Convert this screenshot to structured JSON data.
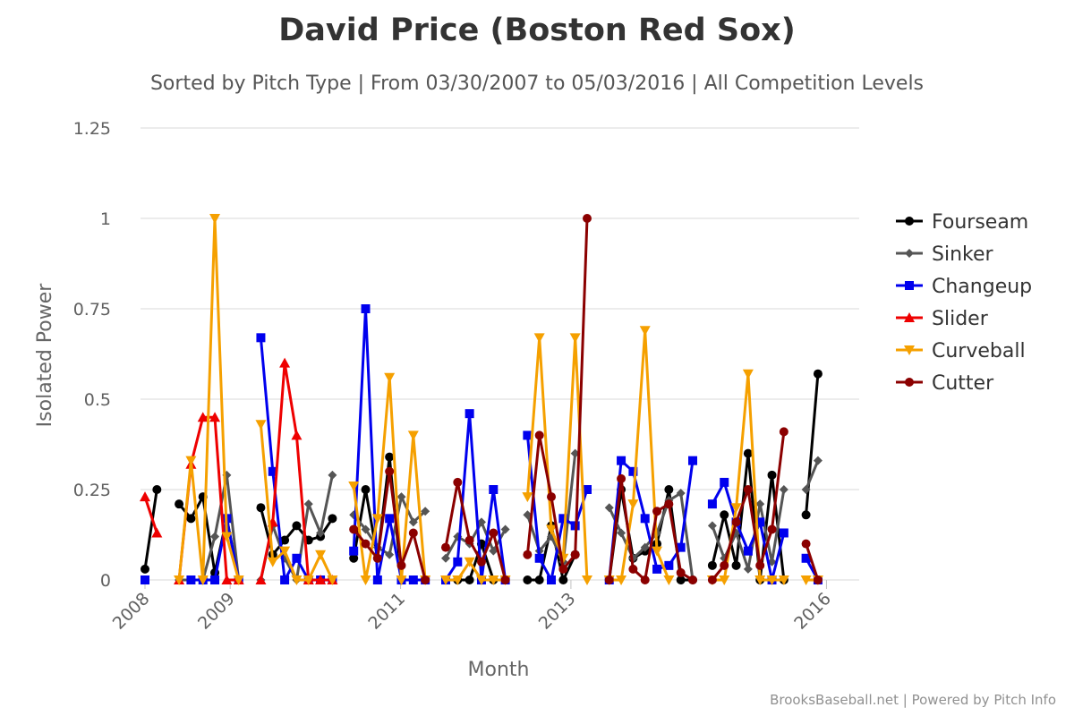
{
  "chart_data": {
    "type": "line",
    "title": "David Price (Boston Red Sox)",
    "subtitle": "Sorted by Pitch Type | From 03/30/2007 to 05/03/2016 | All Competition Levels",
    "xlabel": "Month",
    "ylabel": "Isolated Power",
    "ylim": [
      0,
      1.25
    ],
    "yticks": [
      0,
      0.25,
      0.5,
      0.75,
      1,
      1.25
    ],
    "ytick_labels": [
      "0",
      "0.25",
      "0.5",
      "0.75",
      "1",
      "1.25"
    ],
    "xlim": [
      2008,
      2016.3
    ],
    "xticks": [
      2008,
      2009,
      2011,
      2013,
      2016
    ],
    "xtick_labels": [
      "2008",
      "2009",
      "2011",
      "2013",
      "2016"
    ],
    "grid": true,
    "legend_position": "right",
    "series": [
      {
        "name": "Fourseam",
        "color": "#000000",
        "marker": "circle",
        "segments": [
          [
            [
              2008.0,
              0.03
            ],
            [
              2008.14,
              0.25
            ]
          ],
          [
            [
              2008.4,
              0.21
            ],
            [
              2008.54,
              0.17
            ],
            [
              2008.68,
              0.23
            ],
            [
              2008.82,
              0.02
            ],
            [
              2008.96,
              0.17
            ],
            [
              2009.1,
              0.0
            ]
          ],
          [
            [
              2009.36,
              0.2
            ],
            [
              2009.5,
              0.07
            ],
            [
              2009.64,
              0.11
            ],
            [
              2009.78,
              0.15
            ],
            [
              2009.92,
              0.11
            ],
            [
              2010.06,
              0.12
            ],
            [
              2010.2,
              0.17
            ]
          ],
          [
            [
              2010.45,
              0.06
            ],
            [
              2010.59,
              0.25
            ],
            [
              2010.73,
              0.06
            ],
            [
              2010.87,
              0.34
            ],
            [
              2011.01,
              0.0
            ],
            [
              2011.15,
              0.0
            ],
            [
              2011.29,
              0.0
            ]
          ],
          [
            [
              2011.53,
              0.0
            ],
            [
              2011.67,
              0.0
            ],
            [
              2011.81,
              0.0
            ],
            [
              2011.95,
              0.1
            ],
            [
              2012.09,
              0.0
            ],
            [
              2012.23,
              0.0
            ]
          ],
          [
            [
              2012.49,
              0.0
            ],
            [
              2012.63,
              0.0
            ],
            [
              2012.77,
              0.15
            ],
            [
              2012.91,
              0.0
            ],
            [
              2013.05,
              0.07
            ]
          ],
          [
            [
              2013.45,
              0.0
            ],
            [
              2013.59,
              0.25
            ],
            [
              2013.73,
              0.06
            ],
            [
              2013.87,
              0.08
            ],
            [
              2014.01,
              0.1
            ],
            [
              2014.15,
              0.25
            ],
            [
              2014.29,
              0.0
            ],
            [
              2014.43,
              0.0
            ]
          ],
          [
            [
              2014.66,
              0.04
            ],
            [
              2014.8,
              0.18
            ],
            [
              2014.94,
              0.04
            ],
            [
              2015.08,
              0.35
            ],
            [
              2015.22,
              0.0
            ],
            [
              2015.36,
              0.29
            ],
            [
              2015.5,
              0.0
            ]
          ],
          [
            [
              2015.76,
              0.18
            ],
            [
              2015.9,
              0.57
            ]
          ]
        ]
      },
      {
        "name": "Sinker",
        "color": "#555555",
        "marker": "diamond",
        "segments": [
          [
            [
              2008.4,
              0.0
            ],
            [
              2008.54,
              0.0
            ],
            [
              2008.68,
              0.0
            ],
            [
              2008.82,
              0.12
            ],
            [
              2008.96,
              0.29
            ],
            [
              2009.1,
              0.0
            ]
          ],
          [
            [
              2009.36,
              0.0
            ],
            [
              2009.5,
              0.15
            ],
            [
              2009.64,
              0.06
            ],
            [
              2009.78,
              0.0
            ],
            [
              2009.92,
              0.21
            ],
            [
              2010.06,
              0.13
            ],
            [
              2010.2,
              0.29
            ]
          ],
          [
            [
              2010.45,
              0.18
            ],
            [
              2010.59,
              0.14
            ],
            [
              2010.73,
              0.09
            ],
            [
              2010.87,
              0.07
            ],
            [
              2011.01,
              0.23
            ],
            [
              2011.15,
              0.16
            ],
            [
              2011.29,
              0.19
            ]
          ],
          [
            [
              2011.53,
              0.06
            ],
            [
              2011.67,
              0.12
            ],
            [
              2011.81,
              0.1
            ],
            [
              2011.95,
              0.16
            ],
            [
              2012.09,
              0.08
            ],
            [
              2012.23,
              0.14
            ]
          ],
          [
            [
              2012.49,
              0.18
            ],
            [
              2012.63,
              0.08
            ],
            [
              2012.77,
              0.12
            ],
            [
              2012.91,
              0.05
            ],
            [
              2013.05,
              0.35
            ]
          ],
          [
            [
              2013.45,
              0.2
            ],
            [
              2013.59,
              0.13
            ],
            [
              2013.73,
              0.06
            ],
            [
              2013.87,
              0.09
            ],
            [
              2014.01,
              0.13
            ],
            [
              2014.15,
              0.22
            ],
            [
              2014.29,
              0.24
            ],
            [
              2014.43,
              0.0
            ]
          ],
          [
            [
              2014.66,
              0.15
            ],
            [
              2014.8,
              0.06
            ],
            [
              2014.94,
              0.13
            ],
            [
              2015.08,
              0.03
            ],
            [
              2015.22,
              0.21
            ],
            [
              2015.36,
              0.05
            ],
            [
              2015.5,
              0.25
            ]
          ],
          [
            [
              2015.76,
              0.25
            ],
            [
              2015.9,
              0.33
            ]
          ]
        ]
      },
      {
        "name": "Changeup",
        "color": "#0000ee",
        "marker": "square",
        "segments": [
          [
            [
              2008.0,
              0.0
            ]
          ],
          [
            [
              2008.54,
              0.0
            ],
            [
              2008.68,
              0.0
            ],
            [
              2008.82,
              0.0
            ],
            [
              2008.96,
              0.17
            ],
            [
              2009.1,
              0.0
            ]
          ],
          [
            [
              2009.36,
              0.67
            ],
            [
              2009.5,
              0.3
            ],
            [
              2009.64,
              0.0
            ],
            [
              2009.78,
              0.06
            ],
            [
              2009.92,
              0.0
            ],
            [
              2010.06,
              0.0
            ],
            [
              2010.2,
              0.0
            ]
          ],
          [
            [
              2010.45,
              0.08
            ],
            [
              2010.59,
              0.75
            ],
            [
              2010.73,
              0.0
            ],
            [
              2010.87,
              0.17
            ],
            [
              2011.01,
              0.0
            ],
            [
              2011.15,
              0.0
            ],
            [
              2011.29,
              0.0
            ]
          ],
          [
            [
              2011.53,
              0.0
            ],
            [
              2011.67,
              0.05
            ],
            [
              2011.81,
              0.46
            ],
            [
              2011.95,
              0.0
            ],
            [
              2012.09,
              0.25
            ],
            [
              2012.23,
              0.0
            ]
          ],
          [
            [
              2012.49,
              0.4
            ],
            [
              2012.63,
              0.06
            ],
            [
              2012.77,
              0.0
            ],
            [
              2012.91,
              0.17
            ],
            [
              2013.05,
              0.15
            ],
            [
              2013.19,
              0.25
            ]
          ],
          [
            [
              2013.45,
              0.0
            ],
            [
              2013.59,
              0.33
            ],
            [
              2013.73,
              0.3
            ],
            [
              2013.87,
              0.17
            ],
            [
              2014.01,
              0.03
            ],
            [
              2014.15,
              0.04
            ],
            [
              2014.29,
              0.09
            ],
            [
              2014.43,
              0.33
            ]
          ],
          [
            [
              2014.66,
              0.21
            ],
            [
              2014.8,
              0.27
            ],
            [
              2014.94,
              0.16
            ],
            [
              2015.08,
              0.08
            ],
            [
              2015.22,
              0.16
            ],
            [
              2015.36,
              0.0
            ],
            [
              2015.5,
              0.13
            ]
          ],
          [
            [
              2015.76,
              0.06
            ],
            [
              2015.9,
              0.0
            ]
          ]
        ]
      },
      {
        "name": "Slider",
        "color": "#ee0000",
        "marker": "triangle",
        "segments": [
          [
            [
              2008.0,
              0.23
            ],
            [
              2008.14,
              0.13
            ]
          ],
          [
            [
              2008.4,
              0.0
            ],
            [
              2008.54,
              0.32
            ],
            [
              2008.68,
              0.45
            ],
            [
              2008.82,
              0.45
            ],
            [
              2008.96,
              0.0
            ],
            [
              2009.1,
              0.0
            ]
          ],
          [
            [
              2009.36,
              0.0
            ],
            [
              2009.5,
              0.16
            ],
            [
              2009.64,
              0.6
            ],
            [
              2009.78,
              0.4
            ],
            [
              2009.92,
              0.0
            ],
            [
              2010.06,
              0.0
            ],
            [
              2010.2,
              0.0
            ]
          ]
        ]
      },
      {
        "name": "Curveball",
        "color": "#f5a000",
        "marker": "triangle-down",
        "segments": [
          [
            [
              2008.4,
              0.0
            ],
            [
              2008.54,
              0.33
            ],
            [
              2008.68,
              0.0
            ],
            [
              2008.82,
              1.0
            ],
            [
              2008.96,
              0.12
            ],
            [
              2009.1,
              0.0
            ]
          ],
          [
            [
              2009.36,
              0.43
            ],
            [
              2009.5,
              0.05
            ],
            [
              2009.64,
              0.08
            ],
            [
              2009.78,
              0.0
            ],
            [
              2009.92,
              0.0
            ],
            [
              2010.06,
              0.07
            ],
            [
              2010.2,
              0.0
            ]
          ],
          [
            [
              2010.45,
              0.26
            ],
            [
              2010.59,
              0.0
            ],
            [
              2010.73,
              0.17
            ],
            [
              2010.87,
              0.56
            ],
            [
              2011.01,
              0.0
            ],
            [
              2011.15,
              0.4
            ],
            [
              2011.29,
              0.0
            ]
          ],
          [
            [
              2011.53,
              0.0
            ],
            [
              2011.67,
              0.0
            ],
            [
              2011.81,
              0.05
            ],
            [
              2011.95,
              0.0
            ],
            [
              2012.09,
              0.0
            ],
            [
              2012.23,
              0.0
            ]
          ],
          [
            [
              2012.49,
              0.23
            ],
            [
              2012.63,
              0.67
            ],
            [
              2012.77,
              0.14
            ],
            [
              2012.91,
              0.06
            ],
            [
              2013.05,
              0.67
            ],
            [
              2013.19,
              0.0
            ]
          ],
          [
            [
              2013.45,
              0.0
            ],
            [
              2013.59,
              0.0
            ],
            [
              2013.73,
              0.21
            ],
            [
              2013.87,
              0.69
            ],
            [
              2014.01,
              0.08
            ],
            [
              2014.15,
              0.0
            ]
          ],
          [
            [
              2014.66,
              0.0
            ],
            [
              2014.8,
              0.0
            ],
            [
              2014.94,
              0.2
            ],
            [
              2015.08,
              0.57
            ],
            [
              2015.22,
              0.0
            ],
            [
              2015.36,
              0.0
            ],
            [
              2015.5,
              0.0
            ]
          ],
          [
            [
              2015.76,
              0.0
            ],
            [
              2015.9,
              0.0
            ]
          ]
        ]
      },
      {
        "name": "Cutter",
        "color": "#8b0000",
        "marker": "circle",
        "segments": [
          [
            [
              2010.45,
              0.14
            ],
            [
              2010.59,
              0.1
            ],
            [
              2010.73,
              0.06
            ],
            [
              2010.87,
              0.3
            ],
            [
              2011.01,
              0.04
            ],
            [
              2011.15,
              0.13
            ],
            [
              2011.29,
              0.0
            ]
          ],
          [
            [
              2011.53,
              0.09
            ],
            [
              2011.67,
              0.27
            ],
            [
              2011.81,
              0.11
            ],
            [
              2011.95,
              0.05
            ],
            [
              2012.09,
              0.13
            ],
            [
              2012.23,
              0.0
            ]
          ],
          [
            [
              2012.49,
              0.07
            ],
            [
              2012.63,
              0.4
            ],
            [
              2012.77,
              0.23
            ],
            [
              2012.91,
              0.03
            ],
            [
              2013.05,
              0.07
            ],
            [
              2013.19,
              1.0
            ]
          ],
          [
            [
              2013.45,
              0.0
            ],
            [
              2013.59,
              0.28
            ],
            [
              2013.73,
              0.03
            ],
            [
              2013.87,
              0.0
            ],
            [
              2014.01,
              0.19
            ],
            [
              2014.15,
              0.21
            ],
            [
              2014.29,
              0.02
            ],
            [
              2014.43,
              0.0
            ]
          ],
          [
            [
              2014.66,
              0.0
            ],
            [
              2014.8,
              0.04
            ],
            [
              2014.94,
              0.16
            ],
            [
              2015.08,
              0.25
            ],
            [
              2015.22,
              0.04
            ],
            [
              2015.36,
              0.14
            ],
            [
              2015.5,
              0.41
            ]
          ],
          [
            [
              2015.76,
              0.1
            ],
            [
              2015.9,
              0.0
            ]
          ]
        ]
      }
    ]
  },
  "credits": "BrooksBaseball.net | Powered by Pitch Info"
}
